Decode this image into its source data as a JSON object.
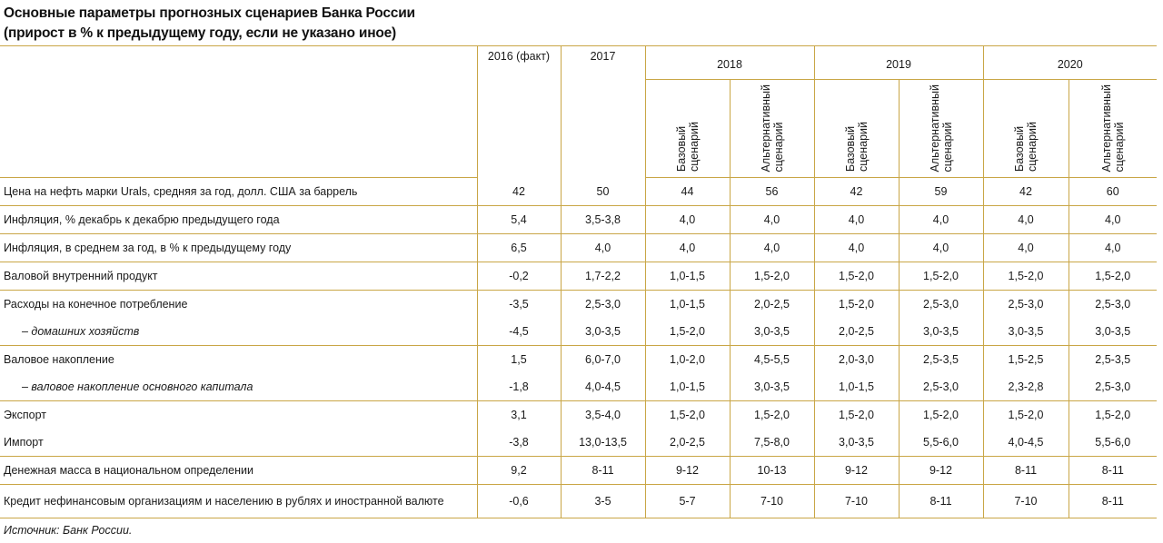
{
  "title_line1": "Основные параметры прогнозных сценариев Банка России",
  "title_line2": "(прирост в % к предыдущему году, если не указано иное)",
  "source": "Источник: Банк России.",
  "columns": {
    "c2016": "2016 (факт)",
    "c2017": "2017",
    "y2018": "2018",
    "y2019": "2019",
    "y2020": "2020",
    "base": "Базовый\nсценарий",
    "alt": "Альтернативный\nсценарий"
  },
  "rows": [
    {
      "label": "Цена на нефть марки Urals, средняя за год, долл. США за баррель",
      "values": [
        "42",
        "50",
        "44",
        "56",
        "42",
        "59",
        "42",
        "60"
      ]
    },
    {
      "label": "Инфляция, % декабрь к декабрю предыдущего года",
      "values": [
        "5,4",
        "3,5-3,8",
        "4,0",
        "4,0",
        "4,0",
        "4,0",
        "4,0",
        "4,0"
      ]
    },
    {
      "label": "Инфляция, в среднем за год, в % к предыдущему году",
      "values": [
        "6,5",
        "4,0",
        "4,0",
        "4,0",
        "4,0",
        "4,0",
        "4,0",
        "4,0"
      ]
    },
    {
      "label": "Валовой внутренний продукт",
      "values": [
        "-0,2",
        "1,7-2,2",
        "1,0-1,5",
        "1,5-2,0",
        "1,5-2,0",
        "1,5-2,0",
        "1,5-2,0",
        "1,5-2,0"
      ]
    },
    {
      "label": "Расходы на конечное потребление",
      "values": [
        "-3,5",
        "2,5-3,0",
        "1,0-1,5",
        "2,0-2,5",
        "1,5-2,0",
        "2,5-3,0",
        "2,5-3,0",
        "2,5-3,0"
      ]
    },
    {
      "label": "– домашних хозяйств",
      "values": [
        "-4,5",
        "3,0-3,5",
        "1,5-2,0",
        "3,0-3,5",
        "2,0-2,5",
        "3,0-3,5",
        "3,0-3,5",
        "3,0-3,5"
      ]
    },
    {
      "label": "Валовое накопление",
      "values": [
        "1,5",
        "6,0-7,0",
        "1,0-2,0",
        "4,5-5,5",
        "2,0-3,0",
        "2,5-3,5",
        "1,5-2,5",
        "2,5-3,5"
      ]
    },
    {
      "label": "– валовое накопление основного капитала",
      "values": [
        "-1,8",
        "4,0-4,5",
        "1,0-1,5",
        "3,0-3,5",
        "1,0-1,5",
        "2,5-3,0",
        "2,3-2,8",
        "2,5-3,0"
      ]
    },
    {
      "label": "Экспорт",
      "values": [
        "3,1",
        "3,5-4,0",
        "1,5-2,0",
        "1,5-2,0",
        "1,5-2,0",
        "1,5-2,0",
        "1,5-2,0",
        "1,5-2,0"
      ]
    },
    {
      "label": "Импорт",
      "values": [
        "-3,8",
        "13,0-13,5",
        "2,0-2,5",
        "7,5-8,0",
        "3,0-3,5",
        "5,5-6,0",
        "4,0-4,5",
        "5,5-6,0"
      ]
    },
    {
      "label": "Денежная масса в национальном определении",
      "values": [
        "9,2",
        "8-11",
        "9-12",
        "10-13",
        "9-12",
        "9-12",
        "8-11",
        "8-11"
      ]
    },
    {
      "label": "Кредит нефинансовым организациям и населению в рублях\nи иностранной валюте",
      "values": [
        "-0,6",
        "3-5",
        "5-7",
        "7-10",
        "7-10",
        "8-11",
        "7-10",
        "8-11"
      ]
    }
  ]
}
